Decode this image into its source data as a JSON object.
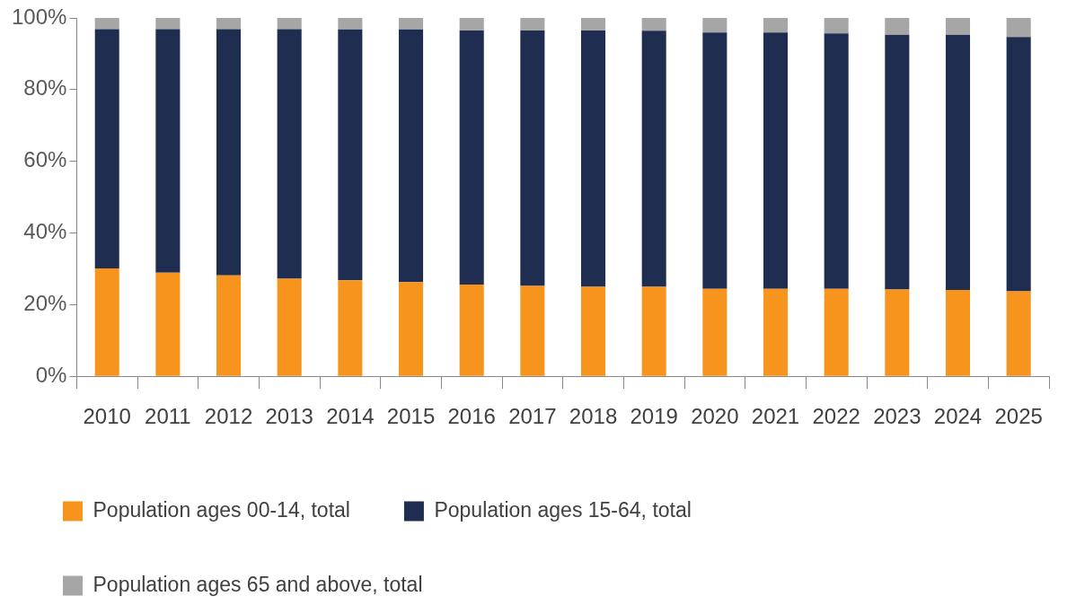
{
  "chart_data": {
    "type": "bar",
    "stacked": true,
    "categories": [
      "2010",
      "2011",
      "2012",
      "2013",
      "2014",
      "2015",
      "2016",
      "2017",
      "2018",
      "2019",
      "2020",
      "2021",
      "2022",
      "2023",
      "2024",
      "2025"
    ],
    "series": [
      {
        "name": "Population ages 00-14, total",
        "color": "#f7941d",
        "values": [
          30.1,
          28.9,
          28.2,
          27.2,
          26.8,
          26.3,
          25.6,
          25.2,
          25.0,
          25.0,
          24.4,
          24.4,
          24.4,
          24.2,
          24.1,
          23.7
        ]
      },
      {
        "name": "Population ages 15-64, total",
        "color": "#1f2d50",
        "values": [
          66.8,
          68.0,
          68.7,
          69.7,
          70.0,
          70.5,
          70.9,
          71.3,
          71.5,
          71.4,
          71.5,
          71.5,
          71.3,
          71.1,
          71.2,
          71.0
        ]
      },
      {
        "name": "Population ages 65 and above, total",
        "color": "#a6a6a6",
        "values": [
          3.1,
          3.1,
          3.1,
          3.1,
          3.2,
          3.2,
          3.5,
          3.5,
          3.5,
          3.6,
          4.1,
          4.1,
          4.3,
          4.7,
          4.7,
          5.3
        ]
      }
    ],
    "ylim": [
      0,
      100
    ],
    "yticks": [
      {
        "value": 0,
        "label": "0%"
      },
      {
        "value": 20,
        "label": "20%"
      },
      {
        "value": 40,
        "label": "40%"
      },
      {
        "value": 60,
        "label": "60%"
      },
      {
        "value": 80,
        "label": "80%"
      },
      {
        "value": 100,
        "label": "100%"
      }
    ],
    "grid": false,
    "legend": "bottom"
  }
}
